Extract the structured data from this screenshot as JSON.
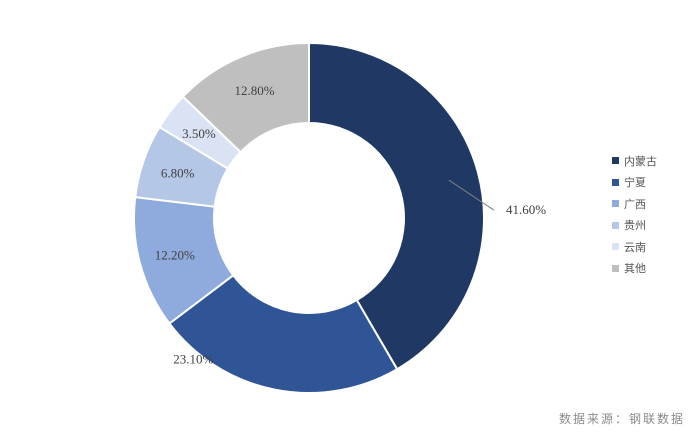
{
  "chart_data": {
    "type": "pie",
    "donut": true,
    "categories": [
      "内蒙古",
      "宁夏",
      "广西",
      "贵州",
      "云南",
      "其他"
    ],
    "values": [
      41.6,
      23.1,
      12.2,
      6.8,
      3.5,
      12.8
    ],
    "value_labels": [
      "41.60%",
      "23.10%",
      "12.20%",
      "6.80%",
      "3.50%",
      "12.80%"
    ],
    "colors": [
      "#203864",
      "#2F5597",
      "#8FAADC",
      "#B4C7E7",
      "#DAE3F3",
      "#BFBFBF"
    ],
    "legend_position": "right",
    "title": ""
  },
  "source_text": "数据来源：钢联数据"
}
